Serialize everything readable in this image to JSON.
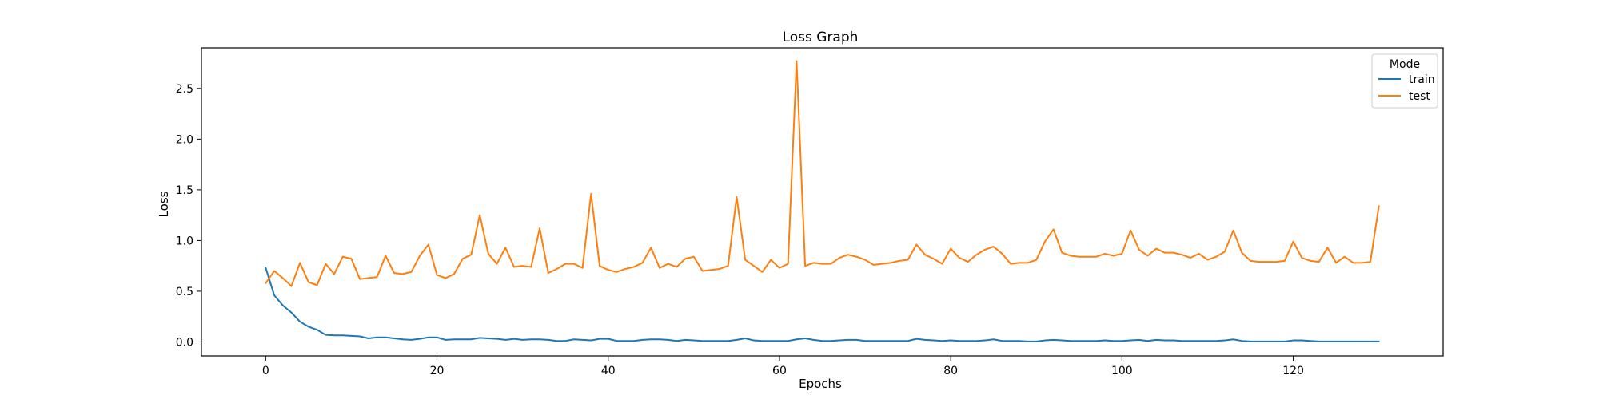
{
  "chart_data": {
    "type": "line",
    "title": "Loss Graph",
    "xlabel": "Epochs",
    "ylabel": "Loss",
    "xlim": [
      -7.5,
      137.5
    ],
    "ylim": [
      -0.138,
      2.9
    ],
    "xticks": [
      0,
      20,
      40,
      60,
      80,
      100,
      120
    ],
    "yticks": [
      0.0,
      0.5,
      1.0,
      1.5,
      2.0,
      2.5
    ],
    "grid": false,
    "legend": {
      "title": "Mode",
      "placement": "top-right"
    },
    "series": [
      {
        "name": "train",
        "color": "#1f77b4",
        "values": [
          0.73,
          0.46,
          0.36,
          0.29,
          0.2,
          0.15,
          0.12,
          0.07,
          0.065,
          0.065,
          0.06,
          0.055,
          0.035,
          0.045,
          0.045,
          0.035,
          0.025,
          0.02,
          0.03,
          0.045,
          0.045,
          0.02,
          0.025,
          0.025,
          0.025,
          0.04,
          0.035,
          0.03,
          0.02,
          0.03,
          0.02,
          0.025,
          0.025,
          0.02,
          0.01,
          0.01,
          0.025,
          0.02,
          0.015,
          0.03,
          0.03,
          0.01,
          0.01,
          0.01,
          0.02,
          0.025,
          0.025,
          0.02,
          0.01,
          0.02,
          0.015,
          0.01,
          0.01,
          0.01,
          0.01,
          0.02,
          0.035,
          0.015,
          0.01,
          0.01,
          0.01,
          0.01,
          0.025,
          0.035,
          0.02,
          0.01,
          0.01,
          0.015,
          0.02,
          0.02,
          0.01,
          0.01,
          0.01,
          0.01,
          0.01,
          0.01,
          0.03,
          0.02,
          0.015,
          0.01,
          0.015,
          0.01,
          0.01,
          0.01,
          0.015,
          0.025,
          0.01,
          0.01,
          0.01,
          0.005,
          0.005,
          0.015,
          0.02,
          0.015,
          0.01,
          0.01,
          0.01,
          0.01,
          0.015,
          0.01,
          0.01,
          0.015,
          0.02,
          0.01,
          0.02,
          0.015,
          0.015,
          0.01,
          0.01,
          0.01,
          0.01,
          0.01,
          0.015,
          0.025,
          0.01,
          0.005,
          0.005,
          0.005,
          0.005,
          0.005,
          0.015,
          0.015,
          0.01,
          0.005,
          0.005,
          0.005,
          0.005,
          0.005,
          0.005,
          0.005,
          0.005
        ]
      },
      {
        "name": "test",
        "color": "#ff7f0e",
        "values": [
          0.58,
          0.7,
          0.63,
          0.55,
          0.78,
          0.59,
          0.56,
          0.77,
          0.67,
          0.84,
          0.82,
          0.62,
          0.63,
          0.64,
          0.85,
          0.68,
          0.67,
          0.69,
          0.85,
          0.96,
          0.66,
          0.63,
          0.67,
          0.82,
          0.86,
          1.25,
          0.87,
          0.77,
          0.93,
          0.74,
          0.75,
          0.74,
          1.12,
          0.68,
          0.72,
          0.77,
          0.77,
          0.73,
          1.46,
          0.75,
          0.71,
          0.69,
          0.72,
          0.74,
          0.78,
          0.93,
          0.73,
          0.77,
          0.74,
          0.82,
          0.84,
          0.7,
          0.71,
          0.72,
          0.75,
          1.43,
          0.81,
          0.75,
          0.69,
          0.81,
          0.73,
          0.77,
          2.77,
          0.75,
          0.78,
          0.77,
          0.77,
          0.83,
          0.86,
          0.84,
          0.81,
          0.76,
          0.77,
          0.78,
          0.8,
          0.81,
          0.96,
          0.86,
          0.82,
          0.77,
          0.92,
          0.83,
          0.79,
          0.86,
          0.91,
          0.94,
          0.87,
          0.77,
          0.78,
          0.78,
          0.81,
          0.99,
          1.11,
          0.88,
          0.85,
          0.84,
          0.84,
          0.84,
          0.87,
          0.85,
          0.87,
          1.1,
          0.91,
          0.85,
          0.92,
          0.88,
          0.88,
          0.86,
          0.83,
          0.87,
          0.81,
          0.84,
          0.89,
          1.1,
          0.88,
          0.8,
          0.79,
          0.79,
          0.79,
          0.8,
          0.99,
          0.83,
          0.8,
          0.79,
          0.93,
          0.78,
          0.84,
          0.78,
          0.78,
          0.79,
          1.34
        ]
      }
    ]
  }
}
